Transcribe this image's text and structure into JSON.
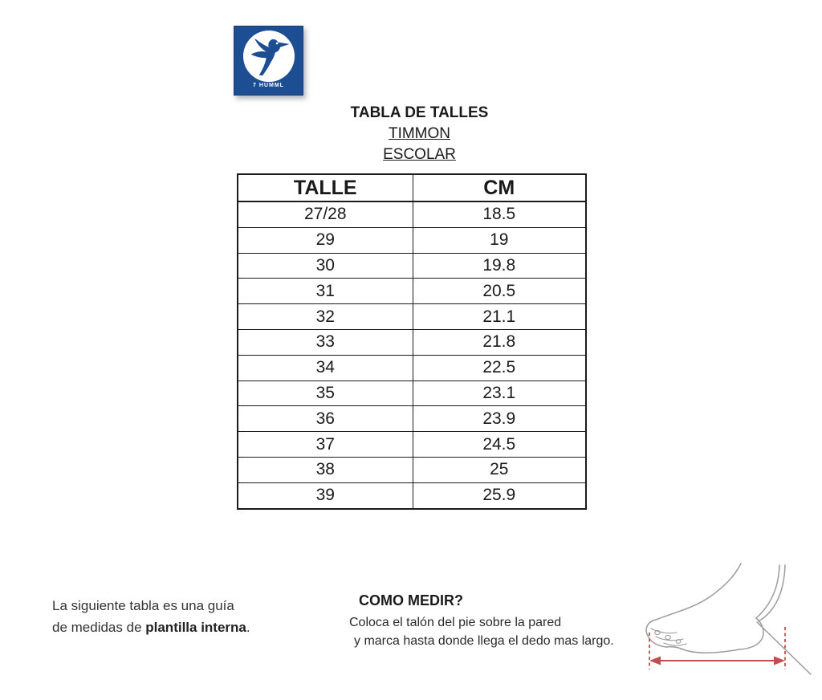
{
  "logo": {
    "text": "7 HUMML",
    "icon": "hummingbird-icon"
  },
  "header": {
    "title": "TABLA DE TALLES",
    "brand": "TIMMON",
    "line": "ESCOLAR"
  },
  "table": {
    "headers": [
      "TALLE",
      "CM"
    ],
    "rows": [
      [
        "27/28",
        "18.5"
      ],
      [
        "29",
        "19"
      ],
      [
        "30",
        "19.8"
      ],
      [
        "31",
        "20.5"
      ],
      [
        "32",
        "21.1"
      ],
      [
        "33",
        "21.8"
      ],
      [
        "34",
        "22.5"
      ],
      [
        "35",
        "23.1"
      ],
      [
        "36",
        "23.9"
      ],
      [
        "37",
        "24.5"
      ],
      [
        "38",
        "25"
      ],
      [
        "39",
        "25.9"
      ]
    ]
  },
  "note": {
    "line1": "La siguiente tabla es una guía",
    "line2_prefix": "de medidas de ",
    "line2_bold": "plantilla interna",
    "line2_suffix": "."
  },
  "how_to_measure": {
    "heading": "COMO MEDIR?",
    "line1": "Coloca el talón del pie sobre la pared",
    "line2": "y marca hasta donde llega el dedo mas largo."
  },
  "colors": {
    "logo_blue": "#1d4e94",
    "arrow_red": "#c0504d",
    "foot_outline_gray": "#9b9b9b",
    "table_border_black": "#1a1a1a"
  },
  "icons": [
    "hummingbird-icon",
    "foot-side-view-diagram",
    "measure-length-arrow"
  ]
}
